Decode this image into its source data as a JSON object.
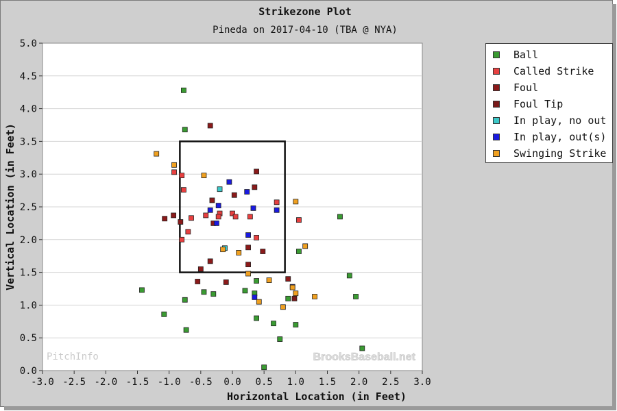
{
  "chart_data": {
    "type": "scatter",
    "title": "Strikezone Plot",
    "subtitle": "Pineda on 2017-04-10 (TBA @ NYA)",
    "xlabel": "Horizontal Location (in Feet)",
    "ylabel": "Vertical Location (in Feet)",
    "xlim": [
      -3.0,
      3.0
    ],
    "ylim": [
      0.0,
      5.0
    ],
    "x_ticks": [
      "-3.0",
      "-2.5",
      "-2.0",
      "-1.5",
      "-1.0",
      "-0.5",
      "0.0",
      "0.5",
      "1.0",
      "1.5",
      "2.0",
      "2.5",
      "3.0"
    ],
    "y_ticks": [
      "0.0",
      "0.5",
      "1.0",
      "1.5",
      "2.0",
      "2.5",
      "3.0",
      "3.5",
      "4.0",
      "4.5",
      "5.0"
    ],
    "grid": "horizontal",
    "legend_position": "right",
    "strike_zone": {
      "x": [
        -0.83,
        0.83
      ],
      "y": [
        1.5,
        3.5
      ]
    },
    "watermarks": {
      "left": "PitchInfo",
      "right": "BrooksBaseball.net"
    },
    "series": [
      {
        "name": "Ball",
        "color": "#3a9b32",
        "points": [
          [
            -0.77,
            4.28
          ],
          [
            -0.75,
            3.68
          ],
          [
            -1.43,
            1.23
          ],
          [
            -1.08,
            0.86
          ],
          [
            -0.75,
            1.08
          ],
          [
            -0.73,
            0.62
          ],
          [
            -0.45,
            1.2
          ],
          [
            -0.3,
            1.17
          ],
          [
            0.2,
            1.22
          ],
          [
            0.38,
            1.37
          ],
          [
            0.35,
            1.18
          ],
          [
            0.38,
            0.8
          ],
          [
            0.5,
            0.05
          ],
          [
            0.65,
            0.72
          ],
          [
            0.75,
            0.48
          ],
          [
            0.88,
            1.1
          ],
          [
            1.0,
            0.7
          ],
          [
            1.05,
            1.82
          ],
          [
            1.7,
            2.35
          ],
          [
            1.85,
            1.45
          ],
          [
            1.95,
            1.13
          ],
          [
            2.05,
            0.34
          ]
        ]
      },
      {
        "name": "Called Strike",
        "color": "#e84040",
        "points": [
          [
            -0.92,
            3.03
          ],
          [
            -0.8,
            2.98
          ],
          [
            -0.77,
            2.76
          ],
          [
            -0.8,
            2.0
          ],
          [
            -0.65,
            2.33
          ],
          [
            -0.7,
            2.12
          ],
          [
            -0.42,
            2.37
          ],
          [
            -0.2,
            2.4
          ],
          [
            -0.22,
            2.35
          ],
          [
            0.0,
            2.4
          ],
          [
            0.05,
            2.35
          ],
          [
            0.28,
            2.35
          ],
          [
            0.38,
            2.03
          ],
          [
            0.7,
            2.57
          ],
          [
            1.05,
            2.3
          ]
        ]
      },
      {
        "name": "Foul",
        "color": "#8b1a1a",
        "points": [
          [
            -0.35,
            3.74
          ],
          [
            0.38,
            3.04
          ],
          [
            0.35,
            2.8
          ],
          [
            0.03,
            2.68
          ],
          [
            -0.32,
            2.6
          ],
          [
            -0.93,
            2.37
          ],
          [
            -1.07,
            2.32
          ],
          [
            -0.82,
            2.27
          ],
          [
            -0.3,
            2.25
          ],
          [
            0.25,
            1.88
          ],
          [
            0.25,
            1.62
          ],
          [
            0.48,
            1.82
          ],
          [
            -0.35,
            1.67
          ],
          [
            -0.5,
            1.55
          ],
          [
            -0.55,
            1.36
          ],
          [
            -0.1,
            1.35
          ],
          [
            0.88,
            1.4
          ]
        ]
      },
      {
        "name": "Foul Tip",
        "color": "#7a1a1a",
        "points": [
          [
            0.98,
            1.1
          ]
        ]
      },
      {
        "name": "In play, no out",
        "color": "#3cc8c8",
        "points": [
          [
            -0.2,
            2.77
          ],
          [
            -0.12,
            1.87
          ]
        ]
      },
      {
        "name": "In play, out(s)",
        "color": "#1a1ae0",
        "points": [
          [
            -0.05,
            2.88
          ],
          [
            0.23,
            2.73
          ],
          [
            -0.22,
            2.52
          ],
          [
            -0.35,
            2.45
          ],
          [
            0.33,
            2.48
          ],
          [
            0.7,
            2.45
          ],
          [
            -0.25,
            2.25
          ],
          [
            0.25,
            2.07
          ],
          [
            0.35,
            1.12
          ],
          [
            0.95,
            1.28
          ]
        ]
      },
      {
        "name": "Swinging Strike",
        "color": "#f0a020",
        "points": [
          [
            -1.2,
            3.31
          ],
          [
            -0.92,
            3.14
          ],
          [
            -0.45,
            2.98
          ],
          [
            1.0,
            2.58
          ],
          [
            1.15,
            1.9
          ],
          [
            -0.15,
            1.85
          ],
          [
            0.1,
            1.8
          ],
          [
            0.25,
            1.48
          ],
          [
            0.58,
            1.38
          ],
          [
            0.95,
            1.27
          ],
          [
            1.0,
            1.18
          ],
          [
            0.42,
            1.05
          ],
          [
            0.8,
            0.97
          ],
          [
            1.3,
            1.13
          ]
        ]
      }
    ]
  }
}
